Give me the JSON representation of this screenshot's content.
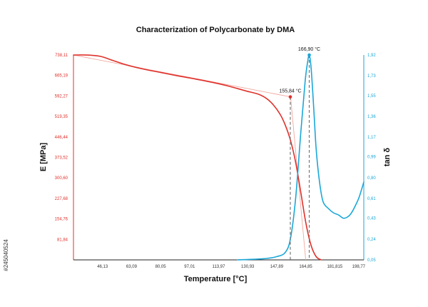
{
  "chart_data": {
    "type": "line",
    "title": "Characterization of Polycarbonate by DMA",
    "xlabel": "Temperature [°C]",
    "ylabel_left": "E [MPa]",
    "ylabel_right": "tan δ",
    "xlim": [
      29.17,
      198.77
    ],
    "x_ticks": [
      "46,13",
      "63,09",
      "80,05",
      "97,01",
      "113,97",
      "130,93",
      "147,89",
      "164,85",
      "181,815",
      "198,77"
    ],
    "ylim_left": [
      8.92,
      738.11
    ],
    "y_ticks_left": [
      "81,84",
      "154,76",
      "227,68",
      "300,60",
      "373,52",
      "446,44",
      "519,35",
      "592,27",
      "665,19",
      "738,11"
    ],
    "ylim_right": [
      0.05,
      1.92
    ],
    "y_ticks_right": [
      "0,05",
      "0,24",
      "0,43",
      "0,61",
      "0,80",
      "0,99",
      "1,17",
      "1,36",
      "1,55",
      "1,73",
      "1,92"
    ],
    "grid": false,
    "colors": {
      "E": "#e0312b",
      "tan_delta": "#1aa7d8",
      "tangent": "#f0a8a0",
      "marker_line": "#777777"
    },
    "series": [
      {
        "name": "E",
        "axis": "left",
        "x": [
          29.17,
          37,
          45,
          52,
          60,
          70,
          80,
          90,
          100,
          110,
          120,
          130,
          137,
          142,
          146,
          150,
          153,
          156,
          159,
          162,
          165,
          168,
          171,
          174
        ],
        "y": [
          738,
          738,
          733,
          719,
          703,
          688,
          676,
          664,
          653,
          641,
          627,
          610,
          599,
          583,
          560,
          526,
          487,
          433,
          355,
          248,
          138,
          60,
          20,
          8.92
        ]
      },
      {
        "name": "tan δ",
        "axis": "right",
        "x": [
          125,
          140,
          148,
          153,
          156,
          159,
          162,
          164.5,
          166,
          166.9,
          168,
          169.5,
          171,
          173,
          175,
          178,
          181,
          184,
          187,
          190,
          192,
          194,
          196,
          198.77
        ],
        "y": [
          0.05,
          0.06,
          0.08,
          0.12,
          0.25,
          0.62,
          1.22,
          1.68,
          1.86,
          1.92,
          1.8,
          1.44,
          1.05,
          0.75,
          0.58,
          0.52,
          0.48,
          0.46,
          0.43,
          0.45,
          0.49,
          0.55,
          0.62,
          0.76
        ]
      }
    ],
    "tangent_lines": [
      {
        "axis": "left",
        "x": [
          29.17,
          156
        ],
        "y": [
          738,
          589
        ]
      },
      {
        "axis": "left",
        "x": [
          156,
          164.85
        ],
        "y": [
          589,
          8.92
        ]
      }
    ],
    "annotations": [
      {
        "x": 155.84,
        "y": 589,
        "axis": "left",
        "label": "155,84 °C"
      },
      {
        "x": 166.9,
        "y": 1.92,
        "axis": "right",
        "label": "166,90 °C"
      }
    ],
    "watermark_id": "#245040524"
  }
}
